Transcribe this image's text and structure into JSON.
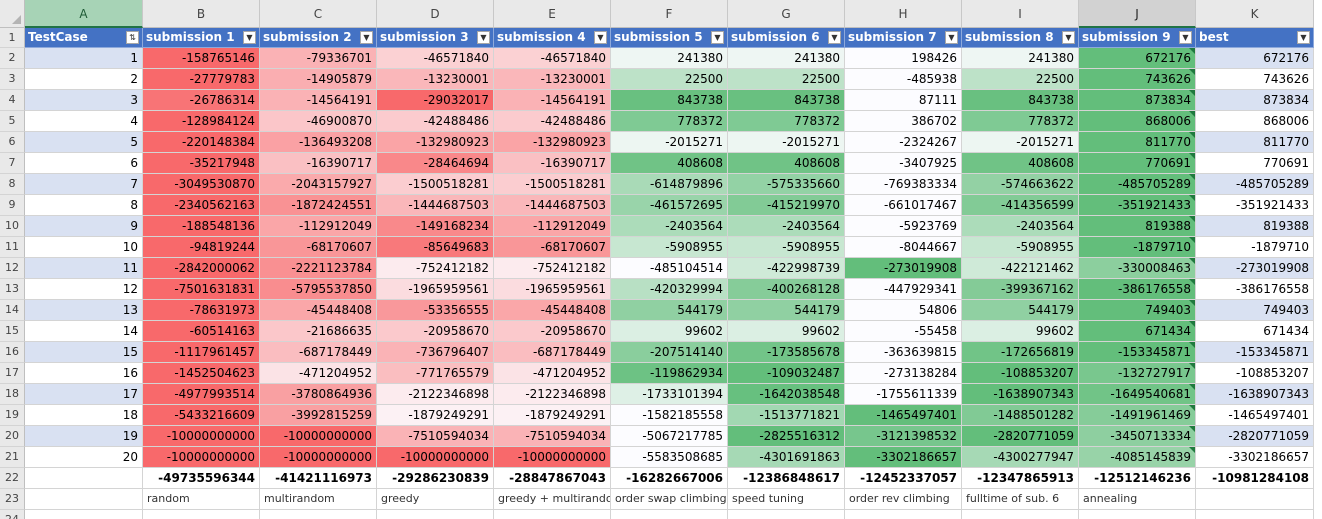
{
  "sheet": {
    "columns": [
      "A",
      "B",
      "C",
      "D",
      "E",
      "F",
      "G",
      "H",
      "I",
      "J",
      "K"
    ],
    "selected_column": "J",
    "active_column": "A",
    "row_numbers": [
      "1",
      "2",
      "3",
      "4",
      "5",
      "6",
      "7",
      "8",
      "9",
      "10",
      "11",
      "12",
      "13",
      "14",
      "15",
      "16",
      "17",
      "18",
      "19",
      "20",
      "21",
      "22",
      "23",
      "24"
    ],
    "header_labels": [
      "TestCase",
      "submission 1",
      "submission 2",
      "submission 3",
      "submission 4",
      "submission 5",
      "submission 6",
      "submission 7",
      "submission 8",
      "submission 9",
      "best"
    ],
    "filter_icons": [
      "sort-filter-icon",
      "filter-icon",
      "filter-icon",
      "filter-icon",
      "filter-icon",
      "filter-icon",
      "filter-icon",
      "filter-icon",
      "filter-icon",
      "filter-icon",
      "filter-icon"
    ],
    "rows": [
      [
        "1",
        "-158765146",
        "-79336701",
        "-46571840",
        "-46571840",
        "241380",
        "241380",
        "198426",
        "241380",
        "672176",
        "672176"
      ],
      [
        "2",
        "-27779783",
        "-14905879",
        "-13230001",
        "-13230001",
        "22500",
        "22500",
        "-485938",
        "22500",
        "743626",
        "743626"
      ],
      [
        "3",
        "-26786314",
        "-14564191",
        "-29032017",
        "-14564191",
        "843738",
        "843738",
        "87111",
        "843738",
        "873834",
        "873834"
      ],
      [
        "4",
        "-128984124",
        "-46900870",
        "-42488486",
        "-42488486",
        "778372",
        "778372",
        "386702",
        "778372",
        "868006",
        "868006"
      ],
      [
        "5",
        "-220148384",
        "-136493208",
        "-132980923",
        "-132980923",
        "-2015271",
        "-2015271",
        "-2324267",
        "-2015271",
        "811770",
        "811770"
      ],
      [
        "6",
        "-35217948",
        "-16390717",
        "-28464694",
        "-16390717",
        "408608",
        "408608",
        "-3407925",
        "408608",
        "770691",
        "770691"
      ],
      [
        "7",
        "-3049530870",
        "-2043157927",
        "-1500518281",
        "-1500518281",
        "-614879896",
        "-575335660",
        "-769383334",
        "-574663622",
        "-485705289",
        "-485705289"
      ],
      [
        "8",
        "-2340562163",
        "-1872424551",
        "-1444687503",
        "-1444687503",
        "-461572695",
        "-415219970",
        "-661017467",
        "-414356599",
        "-351921433",
        "-351921433"
      ],
      [
        "9",
        "-188548136",
        "-112912049",
        "-149168234",
        "-112912049",
        "-2403564",
        "-2403564",
        "-5923769",
        "-2403564",
        "819388",
        "819388"
      ],
      [
        "10",
        "-94819244",
        "-68170607",
        "-85649683",
        "-68170607",
        "-5908955",
        "-5908955",
        "-8044667",
        "-5908955",
        "-1879710",
        "-1879710"
      ],
      [
        "11",
        "-2842000062",
        "-2221123784",
        "-752412182",
        "-752412182",
        "-485104514",
        "-422998739",
        "-273019908",
        "-422121462",
        "-330008463",
        "-273019908"
      ],
      [
        "12",
        "-7501631831",
        "-5795537850",
        "-1965959561",
        "-1965959561",
        "-420329994",
        "-400268128",
        "-447929341",
        "-399367162",
        "-386176558",
        "-386176558"
      ],
      [
        "13",
        "-78631973",
        "-45448408",
        "-53356555",
        "-45448408",
        "544179",
        "544179",
        "54806",
        "544179",
        "749403",
        "749403"
      ],
      [
        "14",
        "-60514163",
        "-21686635",
        "-20958670",
        "-20958670",
        "99602",
        "99602",
        "-55458",
        "99602",
        "671434",
        "671434"
      ],
      [
        "15",
        "-1117961457",
        "-687178449",
        "-736796407",
        "-687178449",
        "-207514140",
        "-173585678",
        "-363639815",
        "-172656819",
        "-153345871",
        "-153345871"
      ],
      [
        "16",
        "-1452504623",
        "-471204952",
        "-771765579",
        "-471204952",
        "-119862934",
        "-109032487",
        "-273138284",
        "-108853207",
        "-132727917",
        "-108853207"
      ],
      [
        "17",
        "-4977993514",
        "-3780864936",
        "-2122346898",
        "-2122346898",
        "-1733101394",
        "-1642038548",
        "-1755611339",
        "-1638907343",
        "-1649540681",
        "-1638907343"
      ],
      [
        "18",
        "-5433216609",
        "-3992815259",
        "-1879249291",
        "-1879249291",
        "-1582185558",
        "-1513771821",
        "-1465497401",
        "-1488501282",
        "-1491961469",
        "-1465497401"
      ],
      [
        "19",
        "-10000000000",
        "-10000000000",
        "-7510594034",
        "-7510594034",
        "-5067217785",
        "-2825516312",
        "-3121398532",
        "-2820771059",
        "-3450713334",
        "-2820771059"
      ],
      [
        "20",
        "-10000000000",
        "-10000000000",
        "-10000000000",
        "-10000000000",
        "-5583508685",
        "-4301691863",
        "-3302186657",
        "-4300277947",
        "-4085145839",
        "-3302186657"
      ]
    ],
    "totals": [
      "",
      "-49735596344",
      "-41421116973",
      "-29286230839",
      "-28847867043",
      "-16282667006",
      "-12386848617",
      "-12452337057",
      "-12347865913",
      "-12512146236",
      "-10981284108"
    ],
    "labels": [
      "",
      "random",
      "multirandom",
      "greedy",
      "greedy + multirandom",
      "order swap climbing",
      "speed tuning",
      "order rev climbing",
      "fulltime of sub. 6",
      "annealing",
      ""
    ],
    "colors": {
      "header_blue": "#4472c4",
      "band_light": "#d9e1f2",
      "scale_red": "#f8696b",
      "scale_white": "#fcfcff",
      "scale_green": "#63be7b",
      "grid": "#d4d4d4",
      "column_header_bg": "#e9e9e9",
      "active_column_bg": "#a7d3b6"
    }
  }
}
